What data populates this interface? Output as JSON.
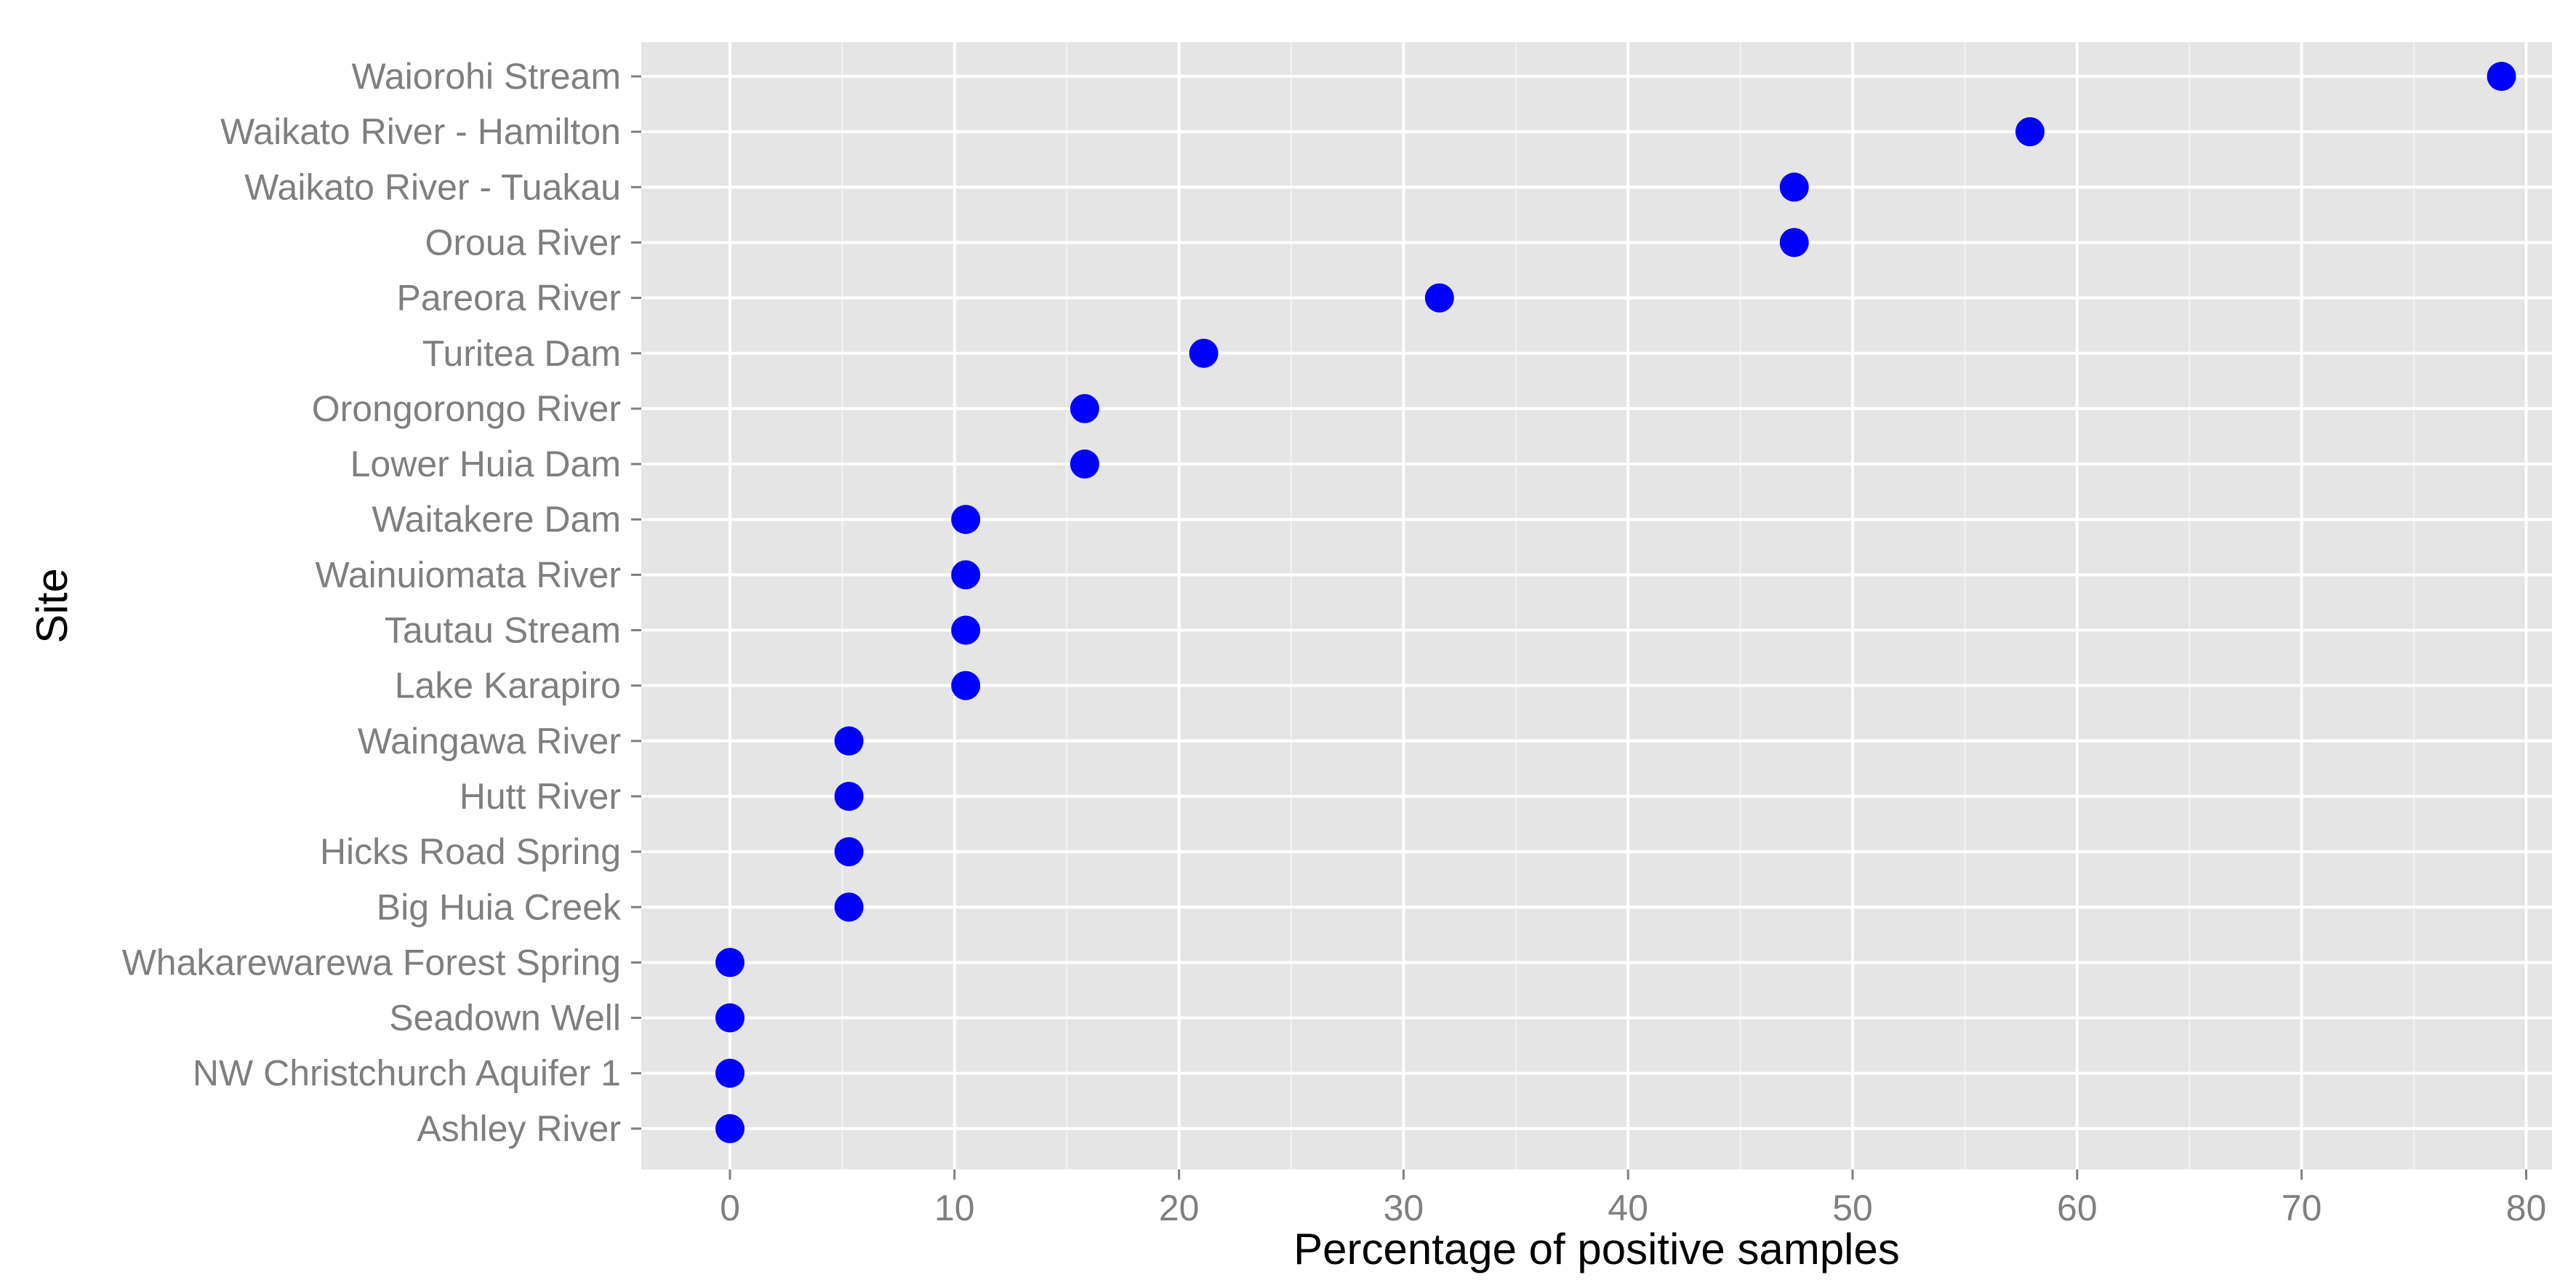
{
  "chart_data": {
    "type": "scatter",
    "title": "",
    "xlabel": "Percentage of positive samples",
    "ylabel": "Site",
    "xlim": [
      -3.95,
      81.15
    ],
    "xticks": [
      "0",
      "10",
      "20",
      "30",
      "40",
      "50",
      "60",
      "70",
      "80"
    ],
    "grid": true,
    "series": [
      {
        "color": "#0000ff",
        "points": [
          {
            "site": "Waiorohi Stream",
            "value": 78.9
          },
          {
            "site": "Waikato River - Hamilton",
            "value": 57.9
          },
          {
            "site": "Waikato River - Tuakau",
            "value": 47.4
          },
          {
            "site": "Oroua River",
            "value": 47.4
          },
          {
            "site": "Pareora River",
            "value": 31.6
          },
          {
            "site": "Turitea Dam",
            "value": 21.1
          },
          {
            "site": "Orongorongo River",
            "value": 15.8
          },
          {
            "site": "Lower Huia Dam",
            "value": 15.8
          },
          {
            "site": "Waitakere Dam",
            "value": 10.5
          },
          {
            "site": "Wainuiomata River",
            "value": 10.5
          },
          {
            "site": "Tautau Stream",
            "value": 10.5
          },
          {
            "site": "Lake Karapiro",
            "value": 10.5
          },
          {
            "site": "Waingawa River",
            "value": 5.3
          },
          {
            "site": "Hutt River",
            "value": 5.3
          },
          {
            "site": "Hicks Road Spring",
            "value": 5.3
          },
          {
            "site": "Big Huia Creek",
            "value": 5.3
          },
          {
            "site": "Whakarewarewa Forest Spring",
            "value": 0
          },
          {
            "site": "Seadown Well",
            "value": 0
          },
          {
            "site": "NW Christchurch Aquifer 1",
            "value": 0
          },
          {
            "site": "Ashley River",
            "value": 0
          }
        ]
      }
    ],
    "colors": {
      "panel_background": "#e5e5e5",
      "grid_major": "#ffffff",
      "grid_minor": "#f2f2f2",
      "tick_text": "#7f7f7f",
      "axis_title": "#000000"
    }
  }
}
